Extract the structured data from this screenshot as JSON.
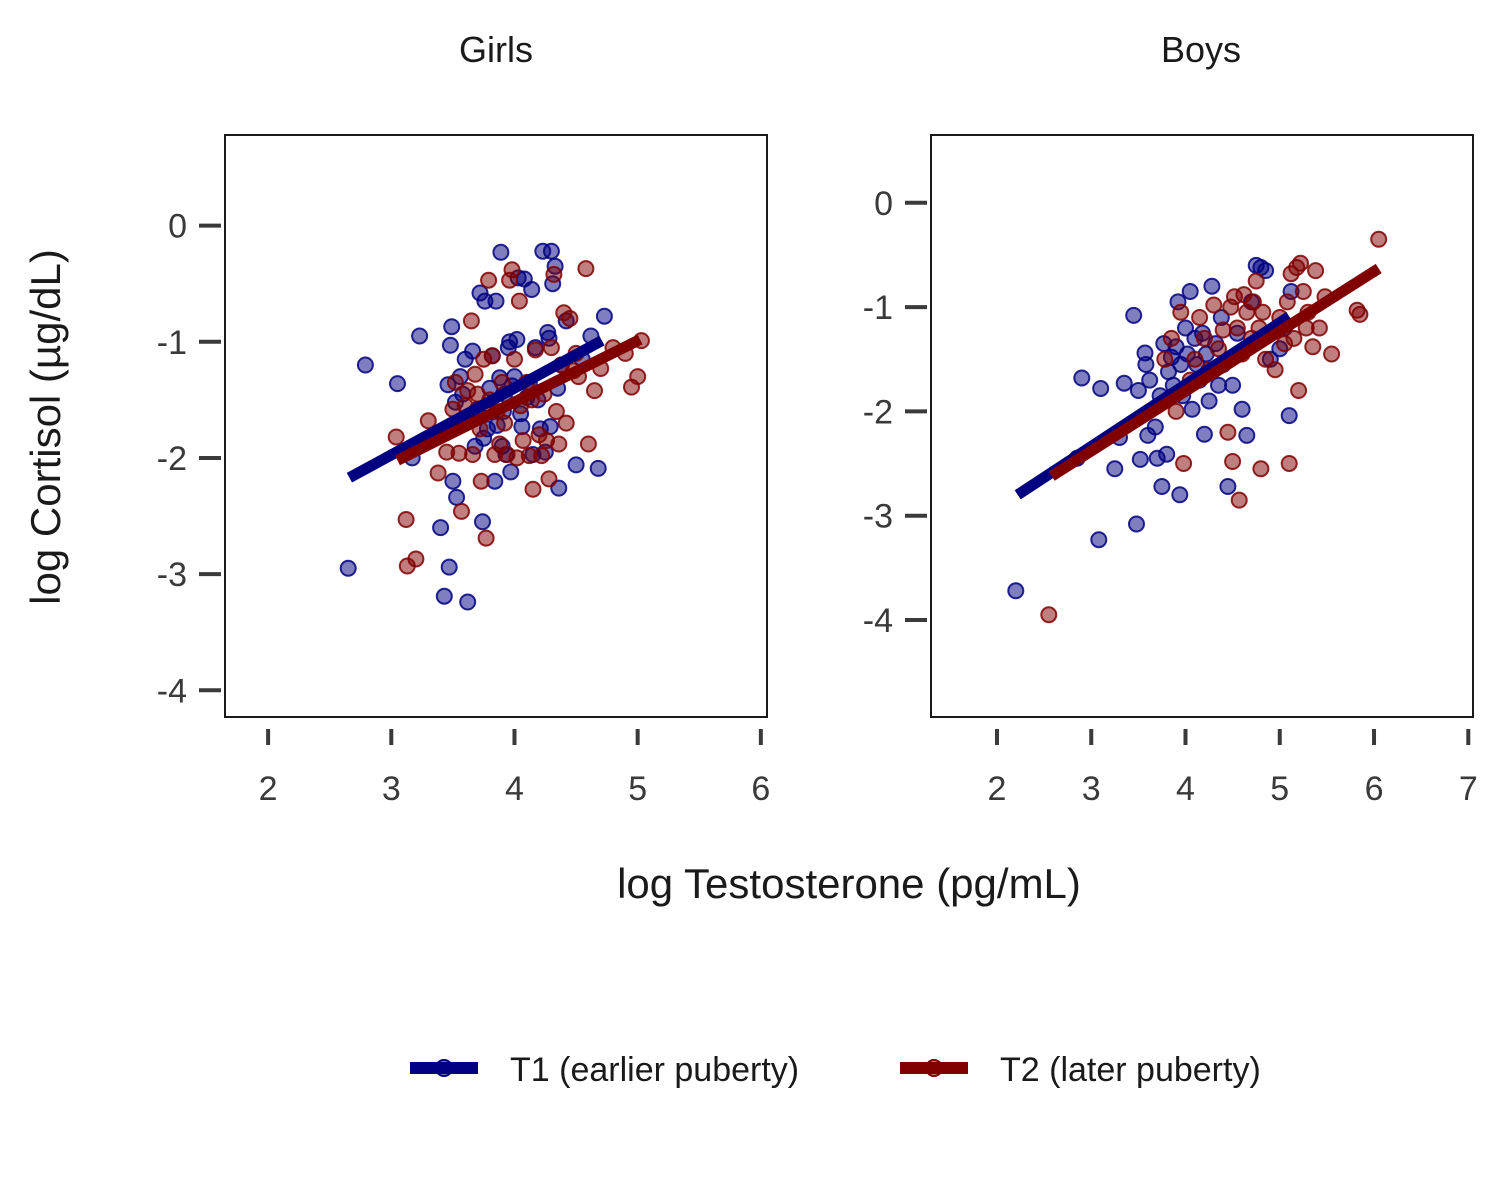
{
  "figure": {
    "y_axis_title": "log Cortisol (µg/dL)",
    "x_axis_title": "log Testosterone (pg/mL)"
  },
  "legend": {
    "placement": "bottom-center",
    "items": [
      {
        "label": "T1 (earlier puberty)",
        "color": "#000080"
      },
      {
        "label": "T2 (later puberty)",
        "color": "#800000"
      }
    ]
  },
  "colors": {
    "t1": "#000080",
    "t2": "#800000",
    "frame": "#1a1a1a",
    "tick_text": "#3a3a3a"
  },
  "chart_data": [
    {
      "type": "scatter",
      "title": "Girls",
      "xlabel": "log Testosterone (pg/mL)",
      "ylabel": "log Cortisol (µg/dL)",
      "xlim": [
        1.65,
        6.05
      ],
      "ylim": [
        -4.23,
        0.78
      ],
      "xticks": [
        2,
        3,
        4,
        5,
        6
      ],
      "yticks": [
        0,
        -1,
        -2,
        -3,
        -4
      ],
      "grid": false,
      "series": [
        {
          "name": "T1 (earlier puberty)",
          "color": "#000080",
          "points": [
            [
              2.65,
              -2.95
            ],
            [
              2.79,
              -1.2
            ],
            [
              3.05,
              -1.36
            ],
            [
              3.17,
              -2.0
            ],
            [
              3.23,
              -0.95
            ],
            [
              3.4,
              -2.6
            ],
            [
              3.43,
              -3.19
            ],
            [
              3.46,
              -1.37
            ],
            [
              3.47,
              -2.94
            ],
            [
              3.48,
              -1.03
            ],
            [
              3.49,
              -0.87
            ],
            [
              3.5,
              -2.2
            ],
            [
              3.52,
              -1.52
            ],
            [
              3.53,
              -2.34
            ],
            [
              3.56,
              -1.3
            ],
            [
              3.58,
              -1.45
            ],
            [
              3.6,
              -1.15
            ],
            [
              3.62,
              -3.24
            ],
            [
              3.63,
              -1.65
            ],
            [
              3.66,
              -1.08
            ],
            [
              3.68,
              -1.9
            ],
            [
              3.7,
              -1.58
            ],
            [
              3.72,
              -0.58
            ],
            [
              3.74,
              -2.55
            ],
            [
              3.75,
              -1.83
            ],
            [
              3.76,
              -0.65
            ],
            [
              3.78,
              -1.75
            ],
            [
              3.8,
              -1.4
            ],
            [
              3.82,
              -1.12
            ],
            [
              3.84,
              -2.2
            ],
            [
              3.85,
              -0.65
            ],
            [
              3.86,
              -1.72
            ],
            [
              3.88,
              -1.31
            ],
            [
              3.89,
              -0.23
            ],
            [
              3.9,
              -1.9
            ],
            [
              3.91,
              -1.6
            ],
            [
              3.92,
              -1.45
            ],
            [
              3.93,
              -1.97
            ],
            [
              3.95,
              -1.05
            ],
            [
              3.96,
              -1.0
            ],
            [
              3.97,
              -2.12
            ],
            [
              3.98,
              -1.38
            ],
            [
              4.0,
              -1.3
            ],
            [
              4.02,
              -0.98
            ],
            [
              4.03,
              -0.45
            ],
            [
              4.05,
              -1.62
            ],
            [
              4.06,
              -1.73
            ],
            [
              4.08,
              -0.46
            ],
            [
              4.1,
              -1.48
            ],
            [
              4.12,
              -1.35
            ],
            [
              4.14,
              -0.55
            ],
            [
              4.15,
              -1.97
            ],
            [
              4.17,
              -1.05
            ],
            [
              4.19,
              -1.5
            ],
            [
              4.21,
              -1.75
            ],
            [
              4.23,
              -0.22
            ],
            [
              4.25,
              -1.95
            ],
            [
              4.27,
              -0.92
            ],
            [
              4.28,
              -0.97
            ],
            [
              4.29,
              -1.73
            ],
            [
              4.3,
              -0.22
            ],
            [
              4.31,
              -0.5
            ],
            [
              4.33,
              -0.35
            ],
            [
              4.35,
              -1.4
            ],
            [
              4.36,
              -2.26
            ],
            [
              4.38,
              -1.2
            ],
            [
              4.42,
              -0.82
            ],
            [
              4.5,
              -2.06
            ],
            [
              4.55,
              -1.15
            ],
            [
              4.62,
              -0.95
            ],
            [
              4.68,
              -2.09
            ],
            [
              4.73,
              -0.78
            ]
          ],
          "fit": [
            [
              2.66,
              -2.17
            ],
            [
              4.71,
              -0.99
            ]
          ]
        },
        {
          "name": "T2 (later puberty)",
          "color": "#800000",
          "points": [
            [
              3.04,
              -1.82
            ],
            [
              3.12,
              -2.53
            ],
            [
              3.13,
              -2.93
            ],
            [
              3.2,
              -2.87
            ],
            [
              3.3,
              -1.68
            ],
            [
              3.38,
              -2.13
            ],
            [
              3.45,
              -1.95
            ],
            [
              3.5,
              -1.58
            ],
            [
              3.52,
              -1.35
            ],
            [
              3.55,
              -1.96
            ],
            [
              3.57,
              -2.46
            ],
            [
              3.6,
              -1.55
            ],
            [
              3.62,
              -1.42
            ],
            [
              3.63,
              -1.65
            ],
            [
              3.65,
              -0.82
            ],
            [
              3.66,
              -1.97
            ],
            [
              3.68,
              -1.28
            ],
            [
              3.7,
              -1.45
            ],
            [
              3.72,
              -1.75
            ],
            [
              3.73,
              -2.2
            ],
            [
              3.75,
              -1.15
            ],
            [
              3.77,
              -2.69
            ],
            [
              3.79,
              -0.47
            ],
            [
              3.8,
              -1.5
            ],
            [
              3.82,
              -1.12
            ],
            [
              3.84,
              -1.97
            ],
            [
              3.86,
              -1.6
            ],
            [
              3.88,
              -1.88
            ],
            [
              3.9,
              -1.35
            ],
            [
              3.92,
              -1.7
            ],
            [
              3.94,
              -1.97
            ],
            [
              3.96,
              -0.47
            ],
            [
              3.98,
              -0.38
            ],
            [
              4.0,
              -1.15
            ],
            [
              4.02,
              -2.0
            ],
            [
              4.04,
              -0.65
            ],
            [
              4.05,
              -1.55
            ],
            [
              4.07,
              -1.85
            ],
            [
              4.1,
              -1.35
            ],
            [
              4.12,
              -1.98
            ],
            [
              4.14,
              -1.5
            ],
            [
              4.15,
              -2.27
            ],
            [
              4.17,
              -1.07
            ],
            [
              4.2,
              -1.8
            ],
            [
              4.22,
              -1.98
            ],
            [
              4.24,
              -1.45
            ],
            [
              4.26,
              -1.85
            ],
            [
              4.28,
              -2.18
            ],
            [
              4.3,
              -1.05
            ],
            [
              4.32,
              -0.42
            ],
            [
              4.34,
              -1.6
            ],
            [
              4.36,
              -1.88
            ],
            [
              4.38,
              -1.2
            ],
            [
              4.4,
              -0.75
            ],
            [
              4.42,
              -1.7
            ],
            [
              4.45,
              -0.8
            ],
            [
              4.48,
              -1.25
            ],
            [
              4.5,
              -1.1
            ],
            [
              4.52,
              -1.3
            ],
            [
              4.58,
              -0.37
            ],
            [
              4.6,
              -1.88
            ],
            [
              4.65,
              -1.42
            ],
            [
              4.7,
              -1.23
            ],
            [
              4.8,
              -1.05
            ],
            [
              4.9,
              -1.1
            ],
            [
              4.95,
              -1.39
            ],
            [
              5.0,
              -1.3
            ],
            [
              5.03,
              -0.99
            ]
          ],
          "fit": [
            [
              3.05,
              -2.02
            ],
            [
              5.02,
              -0.98
            ]
          ]
        }
      ]
    },
    {
      "type": "scatter",
      "title": "Boys",
      "xlabel": "log Testosterone (pg/mL)",
      "ylabel": "log Cortisol (µg/dL)",
      "xlim": [
        1.3,
        7.05
      ],
      "ylim": [
        -4.93,
        0.65
      ],
      "xticks": [
        2,
        3,
        4,
        5,
        6,
        7
      ],
      "yticks": [
        0,
        -1,
        -2,
        -3,
        -4
      ],
      "grid": false,
      "series": [
        {
          "name": "T1 (earlier puberty)",
          "color": "#000080",
          "points": [
            [
              2.2,
              -3.72
            ],
            [
              2.85,
              -2.45
            ],
            [
              2.9,
              -1.68
            ],
            [
              3.08,
              -3.23
            ],
            [
              3.1,
              -1.78
            ],
            [
              3.25,
              -2.55
            ],
            [
              3.3,
              -2.25
            ],
            [
              3.35,
              -1.73
            ],
            [
              3.45,
              -1.08
            ],
            [
              3.48,
              -3.08
            ],
            [
              3.5,
              -1.8
            ],
            [
              3.52,
              -2.46
            ],
            [
              3.57,
              -1.44
            ],
            [
              3.58,
              -1.55
            ],
            [
              3.6,
              -2.23
            ],
            [
              3.62,
              -1.7
            ],
            [
              3.68,
              -2.15
            ],
            [
              3.7,
              -2.45
            ],
            [
              3.73,
              -1.85
            ],
            [
              3.75,
              -2.72
            ],
            [
              3.77,
              -1.35
            ],
            [
              3.8,
              -2.41
            ],
            [
              3.82,
              -1.62
            ],
            [
              3.85,
              -1.48
            ],
            [
              3.87,
              -1.75
            ],
            [
              3.9,
              -1.38
            ],
            [
              3.92,
              -0.95
            ],
            [
              3.94,
              -2.8
            ],
            [
              3.95,
              -1.55
            ],
            [
              3.97,
              -1.85
            ],
            [
              4.0,
              -1.2
            ],
            [
              4.02,
              -1.45
            ],
            [
              4.05,
              -0.85
            ],
            [
              4.07,
              -1.98
            ],
            [
              4.1,
              -1.3
            ],
            [
              4.12,
              -1.55
            ],
            [
              4.15,
              -1.7
            ],
            [
              4.18,
              -1.25
            ],
            [
              4.2,
              -2.22
            ],
            [
              4.22,
              -1.45
            ],
            [
              4.25,
              -1.9
            ],
            [
              4.28,
              -0.8
            ],
            [
              4.3,
              -1.6
            ],
            [
              4.32,
              -1.35
            ],
            [
              4.35,
              -1.75
            ],
            [
              4.38,
              -1.1
            ],
            [
              4.4,
              -1.55
            ],
            [
              4.45,
              -2.72
            ],
            [
              4.5,
              -1.75
            ],
            [
              4.55,
              -1.25
            ],
            [
              4.6,
              -1.98
            ],
            [
              4.65,
              -2.23
            ],
            [
              4.7,
              -0.95
            ],
            [
              4.75,
              -0.6
            ],
            [
              4.8,
              -0.62
            ],
            [
              4.85,
              -0.65
            ],
            [
              4.9,
              -1.5
            ],
            [
              5.0,
              -1.4
            ],
            [
              5.05,
              -1.2
            ],
            [
              5.1,
              -2.04
            ],
            [
              5.12,
              -0.85
            ]
          ],
          "fit": [
            [
              2.22,
              -2.8
            ],
            [
              5.1,
              -1.09
            ]
          ]
        },
        {
          "name": "T2 (later puberty)",
          "color": "#800000",
          "points": [
            [
              2.55,
              -3.95
            ],
            [
              3.78,
              -1.5
            ],
            [
              3.85,
              -1.3
            ],
            [
              3.9,
              -2.0
            ],
            [
              3.95,
              -1.05
            ],
            [
              3.98,
              -2.5
            ],
            [
              4.05,
              -1.7
            ],
            [
              4.1,
              -1.5
            ],
            [
              4.15,
              -1.1
            ],
            [
              4.2,
              -1.3
            ],
            [
              4.25,
              -1.6
            ],
            [
              4.3,
              -0.98
            ],
            [
              4.35,
              -1.4
            ],
            [
              4.4,
              -1.22
            ],
            [
              4.45,
              -2.2
            ],
            [
              4.48,
              -1.0
            ],
            [
              4.5,
              -2.48
            ],
            [
              4.52,
              -0.9
            ],
            [
              4.55,
              -1.2
            ],
            [
              4.57,
              -2.85
            ],
            [
              4.6,
              -1.45
            ],
            [
              4.62,
              -0.88
            ],
            [
              4.65,
              -1.05
            ],
            [
              4.7,
              -1.3
            ],
            [
              4.72,
              -0.95
            ],
            [
              4.75,
              -0.75
            ],
            [
              4.78,
              -1.2
            ],
            [
              4.8,
              -2.55
            ],
            [
              4.82,
              -1.05
            ],
            [
              4.85,
              -1.5
            ],
            [
              4.9,
              -1.25
            ],
            [
              4.95,
              -1.6
            ],
            [
              5.0,
              -1.1
            ],
            [
              5.05,
              -1.35
            ],
            [
              5.08,
              -0.95
            ],
            [
              5.1,
              -2.5
            ],
            [
              5.12,
              -0.68
            ],
            [
              5.15,
              -1.3
            ],
            [
              5.18,
              -0.62
            ],
            [
              5.2,
              -1.8
            ],
            [
              5.22,
              -0.58
            ],
            [
              5.25,
              -0.85
            ],
            [
              5.28,
              -1.2
            ],
            [
              5.3,
              -1.05
            ],
            [
              5.35,
              -1.38
            ],
            [
              5.38,
              -0.65
            ],
            [
              5.42,
              -1.2
            ],
            [
              5.48,
              -0.9
            ],
            [
              5.55,
              -1.45
            ],
            [
              5.82,
              -1.03
            ],
            [
              5.85,
              -1.07
            ],
            [
              6.05,
              -0.35
            ]
          ],
          "fit": [
            [
              2.58,
              -2.62
            ],
            [
              6.05,
              -0.63
            ]
          ]
        }
      ]
    }
  ]
}
